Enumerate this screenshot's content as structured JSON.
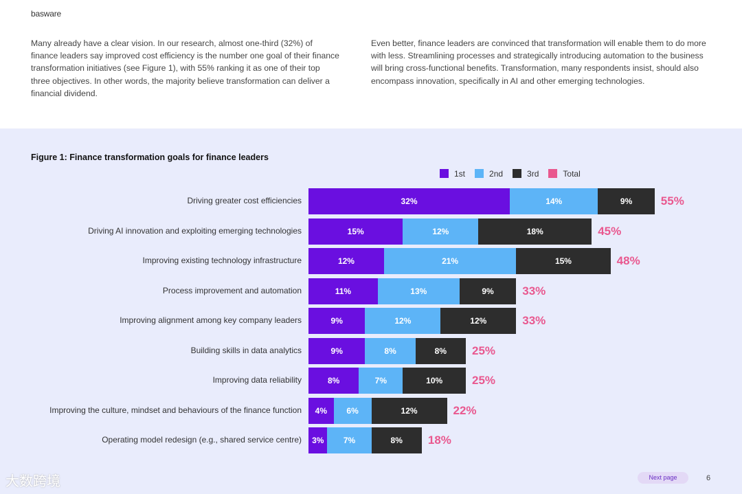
{
  "header": {
    "logo": "basware"
  },
  "intro": {
    "left": "Many already have a clear vision. In our research, almost one-third (32%) of finance leaders say improved cost efficiency is the number one goal of their finance transformation initiatives (see Figure 1), with 55% ranking it as one of their top three objectives. In other words, the majority believe transformation can deliver a financial dividend.",
    "right": "Even better, finance leaders are convinced that transformation will enable them to do more with less. Streamlining processes and strategically introducing automation to the business will bring cross-functional benefits. Transformation, many respondents insist, should also encompass innovation, specifically in AI and other emerging technologies."
  },
  "chart_data": {
    "type": "bar",
    "orientation": "horizontal-stacked",
    "title": "Figure 1: Finance transformation goals for finance leaders",
    "legend": [
      {
        "name": "1st",
        "color": "#6a0fe0"
      },
      {
        "name": "2nd",
        "color": "#5db4f7"
      },
      {
        "name": "3rd",
        "color": "#2d2d2d"
      },
      {
        "name": "Total",
        "color": "#e9588f"
      }
    ],
    "legend_position": "top-right",
    "categories": [
      "Driving greater cost efficiencies",
      "Driving AI innovation and exploiting emerging technologies",
      "Improving existing technology infrastructure",
      "Process improvement and automation",
      "Improving alignment among key company leaders",
      "Building skills in data analytics",
      "Improving data reliability",
      "Improving the culture, mindset and behaviours of the finance function",
      "Operating model redesign (e.g., shared service centre)"
    ],
    "series": [
      {
        "name": "1st",
        "values": [
          32,
          15,
          12,
          11,
          9,
          9,
          8,
          4,
          3
        ]
      },
      {
        "name": "2nd",
        "values": [
          14,
          12,
          21,
          13,
          12,
          8,
          7,
          6,
          7
        ]
      },
      {
        "name": "3rd",
        "values": [
          9,
          18,
          15,
          9,
          12,
          8,
          10,
          12,
          8
        ]
      }
    ],
    "totals": [
      55,
      45,
      48,
      33,
      33,
      25,
      25,
      22,
      18
    ],
    "unit": "%"
  },
  "footer": {
    "next_page": "Next page",
    "page_number": "6",
    "watermark": "大数跨境"
  }
}
